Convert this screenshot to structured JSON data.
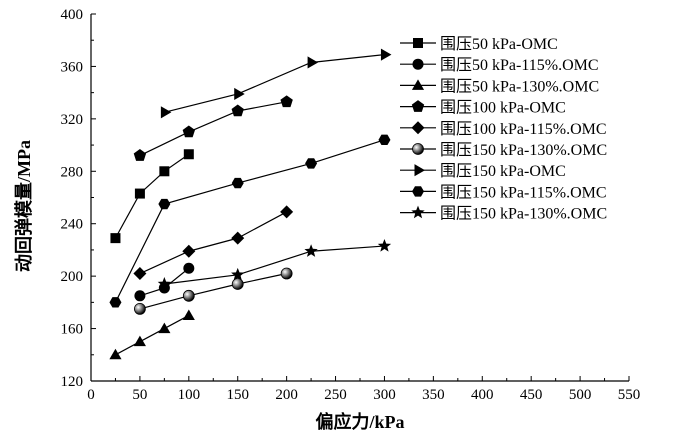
{
  "chart_data": {
    "type": "line",
    "xlabel": "偏应力/kPa",
    "ylabel": "动回弹模量/MPa",
    "xlim": [
      0,
      550
    ],
    "ylim": [
      120,
      400
    ],
    "xticks": [
      0,
      50,
      100,
      150,
      200,
      250,
      300,
      350,
      400,
      450,
      500,
      550
    ],
    "yticks": [
      120,
      160,
      200,
      240,
      280,
      320,
      360,
      400
    ],
    "grid": false,
    "legend_position": "right",
    "series": [
      {
        "name": "围压50 kPa-OMC",
        "marker": "square",
        "x": [
          25,
          50,
          75,
          100
        ],
        "y": [
          229,
          263,
          280,
          293
        ]
      },
      {
        "name": "围压50 kPa-115%.OMC",
        "marker": "circle",
        "x": [
          50,
          75,
          100
        ],
        "y": [
          185,
          191,
          206
        ]
      },
      {
        "name": "围压50 kPa-130%.OMC",
        "marker": "triangle-up",
        "x": [
          25,
          50,
          75,
          100
        ],
        "y": [
          140,
          150,
          160,
          170
        ]
      },
      {
        "name": "围压100 kPa-OMC",
        "marker": "pentagon",
        "x": [
          50,
          100,
          150,
          200
        ],
        "y": [
          292,
          310,
          326,
          333
        ]
      },
      {
        "name": "围压100 kPa-115%.OMC",
        "marker": "diamond",
        "x": [
          50,
          100,
          150,
          200
        ],
        "y": [
          202,
          219,
          229,
          249
        ]
      },
      {
        "name": "围压150 kPa-130%.OMC",
        "marker": "shaded-circle",
        "x": [
          50,
          100,
          150,
          200
        ],
        "y": [
          175,
          185,
          194,
          202
        ]
      },
      {
        "name": "围压150 kPa-OMC",
        "marker": "triangle-right",
        "x": [
          75,
          150,
          225,
          300
        ],
        "y": [
          325,
          339,
          363,
          369
        ]
      },
      {
        "name": "围压150 kPa-115%.OMC",
        "marker": "hexagon",
        "x": [
          25,
          75,
          150,
          225,
          300
        ],
        "y": [
          180,
          255,
          271,
          286,
          304
        ]
      },
      {
        "name": "围压150 kPa-130%.OMC",
        "marker": "star",
        "x": [
          75,
          150,
          225,
          300
        ],
        "y": [
          194,
          201,
          219,
          223
        ]
      }
    ]
  }
}
